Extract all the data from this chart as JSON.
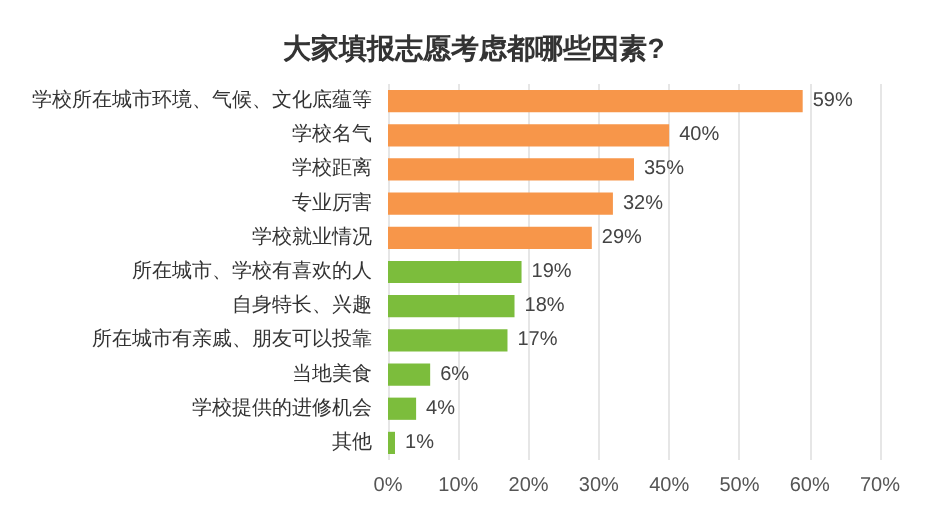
{
  "chart_data": {
    "type": "bar",
    "orientation": "horizontal",
    "title": "大家填报志愿考虑都哪些因素?",
    "categories": [
      "学校所在城市环境、气候、文化底蕴等",
      "学校名气",
      "学校距离",
      "专业厉害",
      "学校就业情况",
      "所在城市、学校有喜欢的人",
      "自身特长、兴趣",
      "所在城市有亲戚、朋友可以投靠",
      "当地美食",
      "学校提供的进修机会",
      "其他"
    ],
    "values": [
      59,
      40,
      35,
      32,
      29,
      19,
      18,
      17,
      6,
      4,
      1
    ],
    "value_labels": [
      "59%",
      "40%",
      "35%",
      "32%",
      "29%",
      "19%",
      "18%",
      "17%",
      "6%",
      "4%",
      "1%"
    ],
    "colors": [
      "#f7964a",
      "#f7964a",
      "#f7964a",
      "#f7964a",
      "#f7964a",
      "#7cbd3c",
      "#7cbd3c",
      "#7cbd3c",
      "#7cbd3c",
      "#7cbd3c",
      "#7cbd3c"
    ],
    "xlim": [
      0,
      70
    ],
    "xticks": [
      {
        "value": 0,
        "label": "0%"
      },
      {
        "value": 10,
        "label": "10%"
      },
      {
        "value": 20,
        "label": "20%"
      },
      {
        "value": 30,
        "label": "30%"
      },
      {
        "value": 40,
        "label": "40%"
      },
      {
        "value": 50,
        "label": "50%"
      },
      {
        "value": 60,
        "label": "60%"
      },
      {
        "value": 70,
        "label": "70%"
      }
    ],
    "grid": "x"
  }
}
